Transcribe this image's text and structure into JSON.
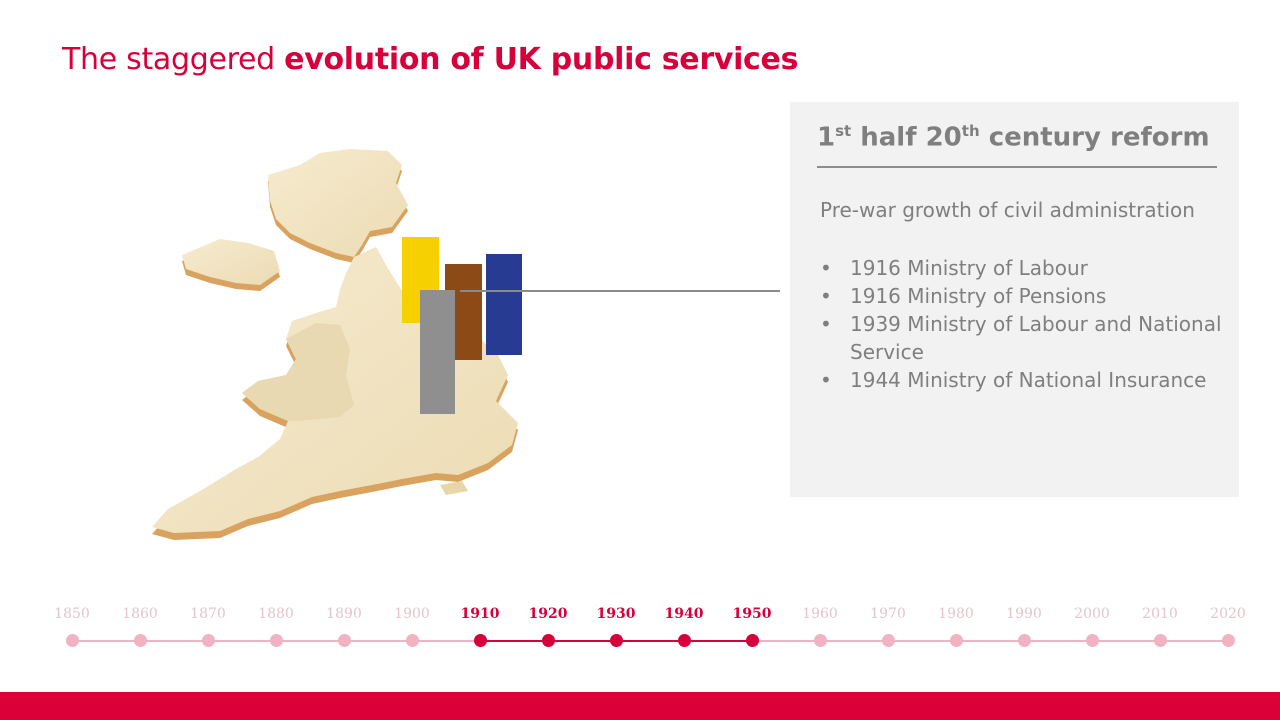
{
  "title": {
    "light": "The staggered ",
    "bold": "evolution of UK public services"
  },
  "panel": {
    "heading_1": "1",
    "heading_sup1": "st",
    "heading_2": " half 20",
    "heading_sup2": "th",
    "heading_3": " century reform",
    "subtitle": "Pre-war growth of civil administration",
    "items": [
      "1916 Ministry of Labour",
      "1916 Ministry of Pensions",
      "1939 Ministry of Labour and National Service",
      "1944 Ministry of National Insurance"
    ]
  },
  "timeline": {
    "years": [
      "1850",
      "1860",
      "1870",
      "1880",
      "1890",
      "1900",
      "1910",
      "1920",
      "1930",
      "1940",
      "1950",
      "1960",
      "1970",
      "1980",
      "1990",
      "2000",
      "2010",
      "2020"
    ],
    "active_years": [
      "1910",
      "1920",
      "1930",
      "1940",
      "1950"
    ]
  },
  "colors": {
    "accent": "#d6003a",
    "bar_yellow": "#f7d000",
    "bar_brown": "#8b4a16",
    "bar_blue": "#263b91",
    "bar_grey": "#8f8f8f"
  }
}
